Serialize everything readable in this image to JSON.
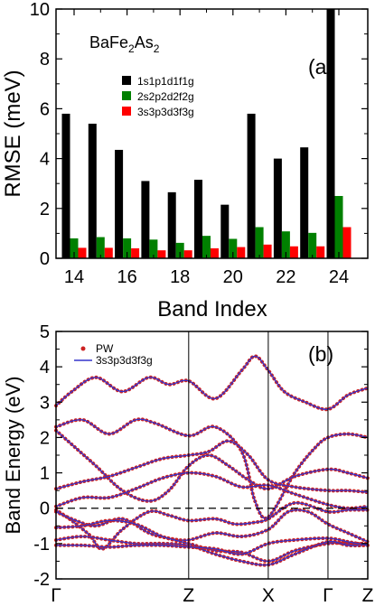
{
  "chart_data": [
    {
      "type": "bar",
      "panel_label": "(a)",
      "annotation": {
        "base": "BaFe",
        "sub1": "2",
        "mid": "As",
        "sub2": "2"
      },
      "xlabel": "Band Index",
      "ylabel": "RMSE (meV)",
      "ylim": [
        0,
        10
      ],
      "y_ticks": [
        "0",
        "2",
        "4",
        "6",
        "8",
        "10"
      ],
      "categories": [
        14,
        15,
        16,
        17,
        18,
        19,
        20,
        21,
        22,
        23,
        24
      ],
      "x_tick_labels": [
        "14",
        "16",
        "18",
        "20",
        "22",
        "24"
      ],
      "legend_position": "upper-left",
      "series": [
        {
          "name": "1s1p1d1f1g",
          "color": "#000000",
          "values": [
            5.8,
            5.4,
            4.35,
            3.1,
            2.65,
            3.15,
            2.15,
            5.8,
            4.0,
            4.45,
            10.0
          ]
        },
        {
          "name": "2s2p2d2f2g",
          "color": "#008000",
          "values": [
            0.8,
            0.85,
            0.8,
            0.75,
            0.62,
            0.9,
            0.78,
            1.25,
            1.08,
            1.02,
            2.5
          ]
        },
        {
          "name": "3s3p3d3f3g",
          "color": "#ff0000",
          "values": [
            0.42,
            0.42,
            0.4,
            0.32,
            0.32,
            0.4,
            0.45,
            0.55,
            0.48,
            0.48,
            1.25
          ]
        }
      ]
    },
    {
      "type": "line",
      "panel_label": "(b)",
      "ylabel": "Band Energy (eV)",
      "ylim": [
        -2,
        5
      ],
      "y_ticks": [
        "-2",
        "-1",
        "0",
        "1",
        "2",
        "3",
        "4",
        "5"
      ],
      "k_labels": [
        "Γ",
        "Z",
        "X",
        "Γ",
        "Z"
      ],
      "k_positions": [
        0,
        1,
        1.6,
        2.05,
        2.35
      ],
      "fermi_level": 0,
      "legend_position": "upper-left",
      "legend": [
        {
          "name": "PW",
          "color": "#cc2222"
        },
        {
          "name": "3s3p3d3f3g",
          "color": "#3333cc"
        }
      ],
      "bands": [
        [
          [
            0,
            2.9
          ],
          [
            0.12,
            3.3
          ],
          [
            0.3,
            3.7
          ],
          [
            0.5,
            3.3
          ],
          [
            0.7,
            3.7
          ],
          [
            0.85,
            3.5
          ],
          [
            1.0,
            3.6
          ],
          [
            1.2,
            3.1
          ],
          [
            1.4,
            3.9
          ],
          [
            1.5,
            4.3
          ],
          [
            1.6,
            3.9
          ],
          [
            1.72,
            3.3
          ],
          [
            1.88,
            3.0
          ],
          [
            2.05,
            2.8
          ],
          [
            2.2,
            3.2
          ],
          [
            2.35,
            3.4
          ]
        ],
        [
          [
            0,
            2.3
          ],
          [
            0.2,
            2.5
          ],
          [
            0.4,
            2.1
          ],
          [
            0.6,
            2.5
          ],
          [
            0.75,
            2.4
          ],
          [
            1.0,
            2.05
          ],
          [
            1.2,
            2.3
          ],
          [
            1.4,
            1.6
          ],
          [
            1.5,
            0.2
          ],
          [
            1.6,
            -0.25
          ],
          [
            1.8,
            1.0
          ],
          [
            1.95,
            1.7
          ],
          [
            2.05,
            2.0
          ],
          [
            2.2,
            2.1
          ],
          [
            2.35,
            2.0
          ]
        ],
        [
          [
            0,
            2.2
          ],
          [
            0.15,
            1.7
          ],
          [
            0.3,
            1.2
          ],
          [
            0.5,
            0.5
          ],
          [
            0.7,
            0.2
          ],
          [
            0.85,
            0.5
          ],
          [
            1.0,
            1.2
          ],
          [
            1.15,
            1.5
          ],
          [
            1.3,
            1.2
          ],
          [
            1.45,
            0.8
          ],
          [
            1.6,
            0.55
          ],
          [
            1.8,
            0.9
          ],
          [
            2.05,
            1.1
          ],
          [
            2.2,
            1.0
          ],
          [
            2.35,
            0.85
          ]
        ],
        [
          [
            0,
            0.55
          ],
          [
            0.2,
            0.75
          ],
          [
            0.4,
            0.9
          ],
          [
            0.6,
            1.15
          ],
          [
            0.8,
            1.4
          ],
          [
            1.0,
            1.5
          ],
          [
            1.15,
            1.6
          ],
          [
            1.3,
            1.9
          ],
          [
            1.45,
            1.5
          ],
          [
            1.6,
            0.8
          ],
          [
            1.8,
            0.6
          ],
          [
            2.05,
            0.5
          ],
          [
            2.2,
            0.5
          ],
          [
            2.35,
            0.45
          ]
        ],
        [
          [
            0,
            0.05
          ],
          [
            0.2,
            0.3
          ],
          [
            0.4,
            0.3
          ],
          [
            0.6,
            0.55
          ],
          [
            0.8,
            0.85
          ],
          [
            1.0,
            1.0
          ],
          [
            1.2,
            0.9
          ],
          [
            1.4,
            0.6
          ],
          [
            1.6,
            0.65
          ],
          [
            1.8,
            0.4
          ],
          [
            2.05,
            0.1
          ],
          [
            2.2,
            0.0
          ],
          [
            2.35,
            0.05
          ]
        ],
        [
          [
            0,
            -0.05
          ],
          [
            0.1,
            -0.3
          ],
          [
            0.25,
            -0.75
          ],
          [
            0.35,
            -1.15
          ],
          [
            0.5,
            -0.6
          ],
          [
            0.7,
            -0.1
          ],
          [
            0.85,
            -0.2
          ],
          [
            1.0,
            -0.35
          ],
          [
            1.2,
            -0.3
          ],
          [
            1.35,
            -0.45
          ],
          [
            1.5,
            -0.4
          ],
          [
            1.6,
            -0.3
          ],
          [
            1.8,
            0.15
          ],
          [
            2.05,
            -0.1
          ],
          [
            2.2,
            -0.05
          ],
          [
            2.35,
            -0.05
          ]
        ],
        [
          [
            0,
            -0.1
          ],
          [
            0.15,
            -0.35
          ],
          [
            0.3,
            -0.5
          ],
          [
            0.5,
            -0.3
          ],
          [
            0.7,
            -0.7
          ],
          [
            0.85,
            -0.85
          ],
          [
            1.0,
            -0.9
          ],
          [
            1.2,
            -0.7
          ],
          [
            1.4,
            -0.8
          ],
          [
            1.6,
            -0.6
          ],
          [
            1.75,
            -0.1
          ],
          [
            1.9,
            -0.1
          ],
          [
            2.05,
            -0.45
          ],
          [
            2.2,
            -0.7
          ],
          [
            2.35,
            -0.95
          ]
        ],
        [
          [
            0,
            -0.55
          ],
          [
            0.2,
            -0.5
          ],
          [
            0.4,
            -0.35
          ],
          [
            0.6,
            -0.45
          ],
          [
            0.8,
            -0.8
          ],
          [
            1.0,
            -1.0
          ],
          [
            1.2,
            -1.2
          ],
          [
            1.4,
            -1.25
          ],
          [
            1.6,
            -1.5
          ],
          [
            1.8,
            -1.2
          ],
          [
            2.05,
            -1.0
          ],
          [
            2.2,
            -1.0
          ],
          [
            2.35,
            -1.0
          ]
        ],
        [
          [
            0,
            -0.9
          ],
          [
            0.2,
            -0.8
          ],
          [
            0.4,
            -0.9
          ],
          [
            0.6,
            -1.0
          ],
          [
            0.8,
            -1.0
          ],
          [
            1.0,
            -1.05
          ],
          [
            1.2,
            -1.3
          ],
          [
            1.4,
            -1.5
          ],
          [
            1.6,
            -1.6
          ],
          [
            1.8,
            -1.3
          ],
          [
            2.05,
            -0.95
          ],
          [
            2.2,
            -1.05
          ],
          [
            2.35,
            -1.05
          ]
        ],
        [
          [
            0,
            -1.05
          ],
          [
            0.2,
            -1.05
          ],
          [
            0.4,
            -1.1
          ],
          [
            0.6,
            -1.05
          ],
          [
            0.8,
            -1.05
          ],
          [
            1.0,
            -1.1
          ],
          [
            1.2,
            -1.15
          ],
          [
            1.4,
            -1.3
          ],
          [
            1.6,
            -1.0
          ],
          [
            1.8,
            -0.9
          ],
          [
            2.05,
            -0.85
          ],
          [
            2.2,
            -0.95
          ],
          [
            2.35,
            -1.05
          ]
        ]
      ]
    }
  ]
}
